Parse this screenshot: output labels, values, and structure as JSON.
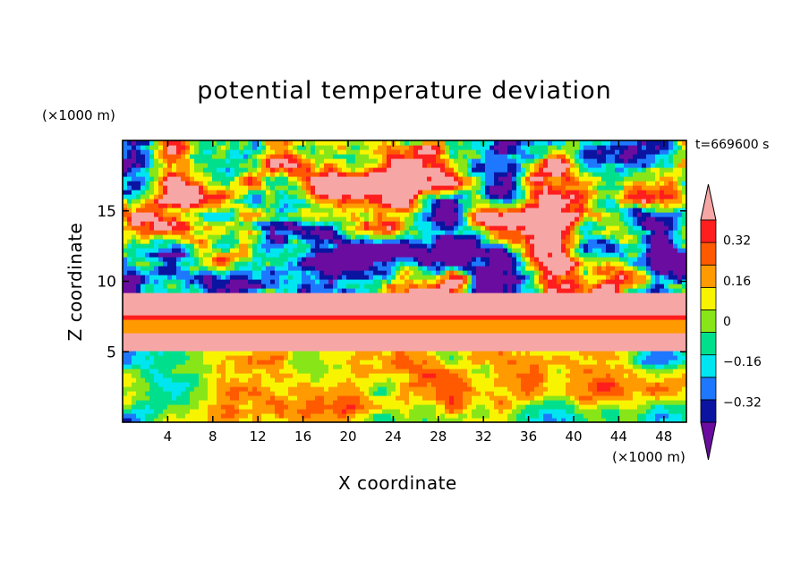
{
  "chart_data": {
    "type": "heatmap",
    "title": "potential temperature deviation",
    "xlabel": "X coordinate",
    "ylabel": "Z coordinate",
    "x_unit": "(×1000 m)",
    "z_unit": "(×1000 m)",
    "time_label": "t=669600 s",
    "xlim": [
      0,
      50
    ],
    "ylim": [
      0,
      20
    ],
    "x_ticks": [
      4,
      8,
      12,
      16,
      20,
      24,
      28,
      32,
      36,
      40,
      44,
      48
    ],
    "y_ticks": [
      5,
      10,
      15
    ],
    "colorbar": {
      "levels": [
        -0.4,
        -0.32,
        -0.24,
        -0.16,
        -0.08,
        0,
        0.08,
        0.16,
        0.24,
        0.32,
        0.4
      ],
      "tick_labels": [
        "0.32",
        "0.16",
        "0",
        "−0.16",
        "−0.32"
      ],
      "tick_values": [
        0.32,
        0.16,
        0,
        -0.16,
        -0.32
      ],
      "colors": [
        "#6a0ca0",
        "#0a14a0",
        "#1e78ff",
        "#00e6f0",
        "#00e08c",
        "#88e618",
        "#f8f400",
        "#ff9a00",
        "#ff5a00",
        "#ff1e1e",
        "#f7a6a6"
      ],
      "extend": "both"
    },
    "field_layers": [
      {
        "z_range": [
          5.0,
          5.5
        ],
        "value": 0.45
      },
      {
        "z_range": [
          5.5,
          6.3
        ],
        "value": 0.45
      },
      {
        "z_range": [
          6.3,
          7.2
        ],
        "value": 0.1
      },
      {
        "z_range": [
          7.2,
          7.6
        ],
        "value": 0.3
      },
      {
        "z_range": [
          7.6,
          9.3
        ],
        "value": 0.45
      }
    ]
  }
}
